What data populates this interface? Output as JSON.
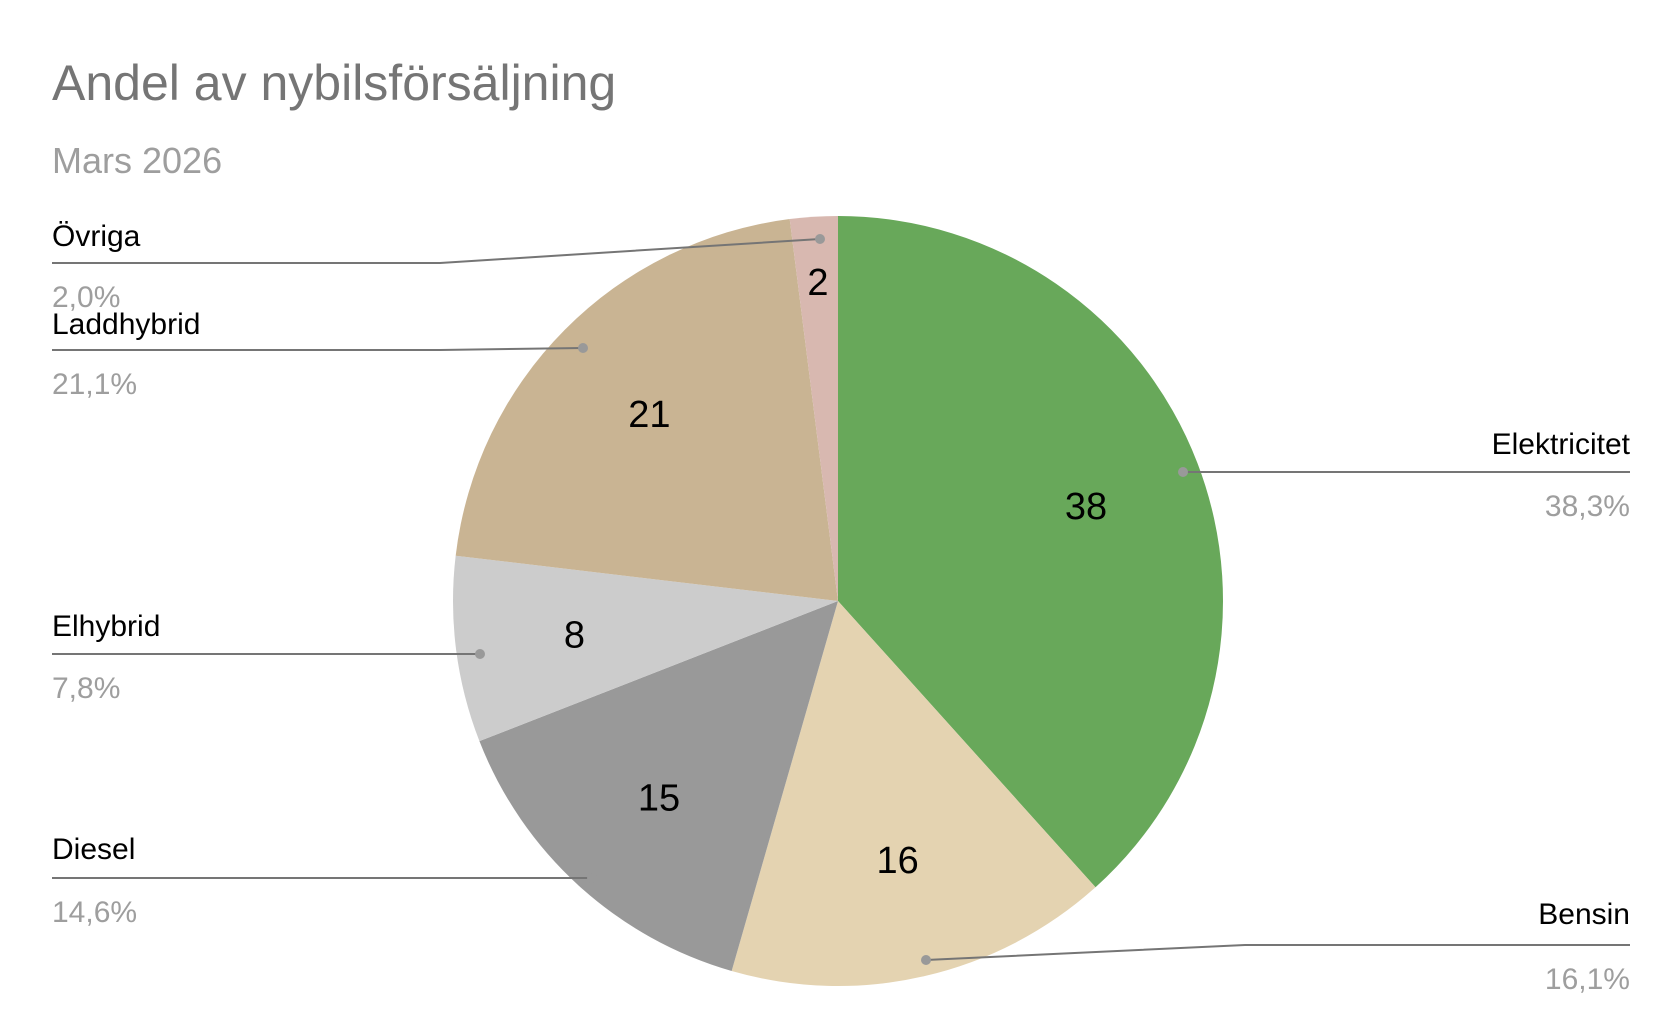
{
  "chart_data": {
    "type": "pie",
    "title": "Andel av nybilsförsäljning",
    "subtitle": "Mars 2026",
    "start_angle_deg": 0,
    "direction": "clockwise",
    "slices": [
      {
        "name": "Elektricitet",
        "value": 38.3,
        "label": "38",
        "percent_label": "38,3%",
        "color": "#68a85a"
      },
      {
        "name": "Bensin",
        "value": 16.1,
        "label": "16",
        "percent_label": "16,1%",
        "color": "#e4d3b1"
      },
      {
        "name": "Diesel",
        "value": 14.6,
        "label": "15",
        "percent_label": "14,6%",
        "color": "#999999"
      },
      {
        "name": "Elhybrid",
        "value": 7.8,
        "label": "8",
        "percent_label": "7,8%",
        "color": "#cccccc"
      },
      {
        "name": "Laddhybrid",
        "value": 21.1,
        "label": "21",
        "percent_label": "21,1%",
        "color": "#c9b493"
      },
      {
        "name": "Övriga",
        "value": 2.0,
        "label": "2",
        "percent_label": "2,0%",
        "color": "#d8b8b0"
      }
    ],
    "legend": "callout-labels"
  }
}
